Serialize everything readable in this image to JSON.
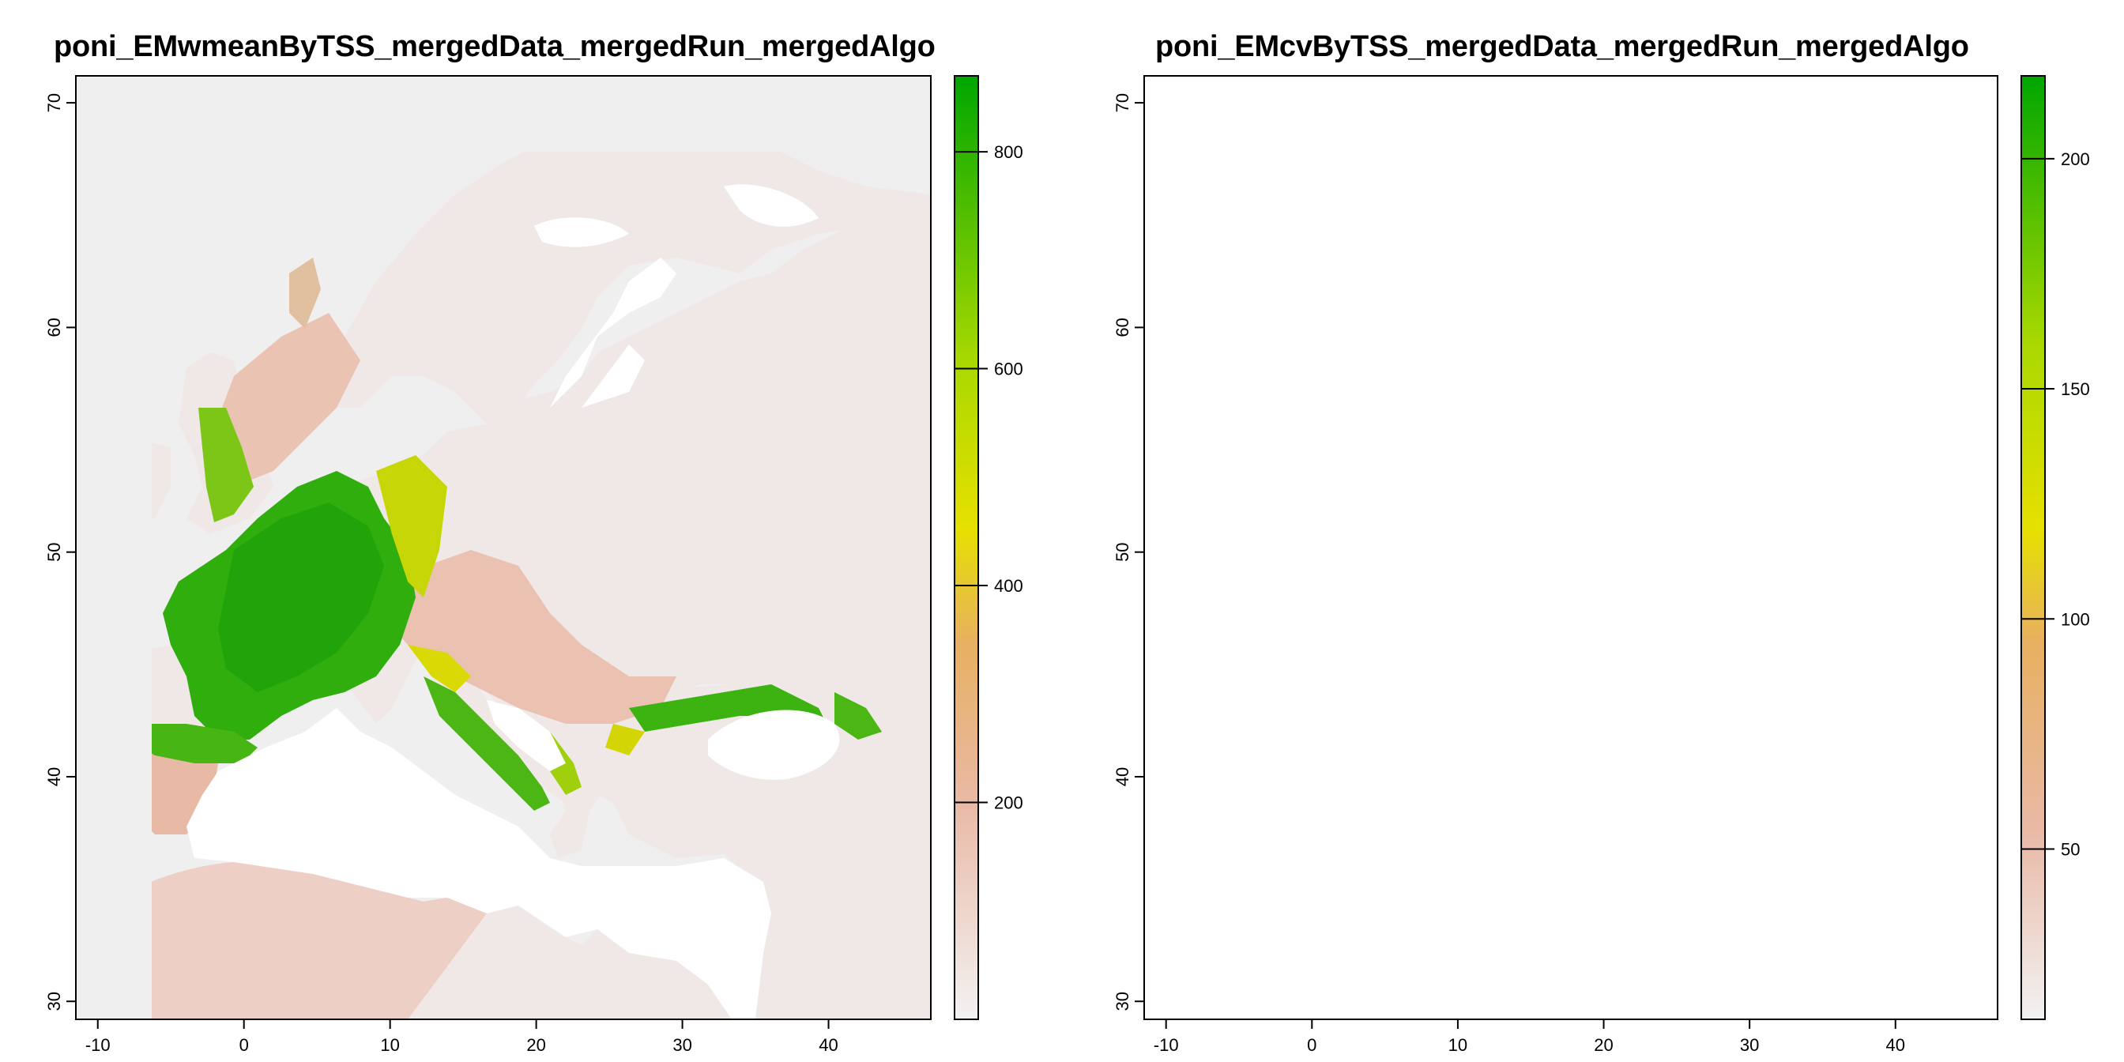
{
  "panels": [
    {
      "title": "poni_EMwmeanByTSS_mergedData_mergedRun_mergedAlgo",
      "x_ticks": [
        "-10",
        "0",
        "10",
        "20",
        "30",
        "40"
      ],
      "y_ticks": [
        "30",
        "40",
        "50",
        "60",
        "70"
      ],
      "legend_ticks": [
        "200",
        "400",
        "600",
        "800"
      ],
      "legend_range": [
        0,
        870
      ]
    },
    {
      "title": "poni_EMcvByTSS_mergedData_mergedRun_mergedAlgo",
      "x_ticks": [
        "-10",
        "0",
        "10",
        "20",
        "30",
        "40"
      ],
      "y_ticks": [
        "30",
        "40",
        "50",
        "60",
        "70"
      ],
      "legend_ticks": [
        "50",
        "100",
        "150",
        "200"
      ],
      "legend_range": [
        13,
        218
      ]
    }
  ],
  "map_extent": {
    "lon": [
      -11.5,
      47
    ],
    "lat": [
      29.2,
      71.2
    ]
  },
  "colors": {
    "palette": [
      "#f2f2f2",
      "#e9b9a6",
      "#e8b060",
      "#e6e000",
      "#a8d800",
      "#00a600"
    ],
    "water": "#ffffff",
    "frame": "#000000"
  }
}
